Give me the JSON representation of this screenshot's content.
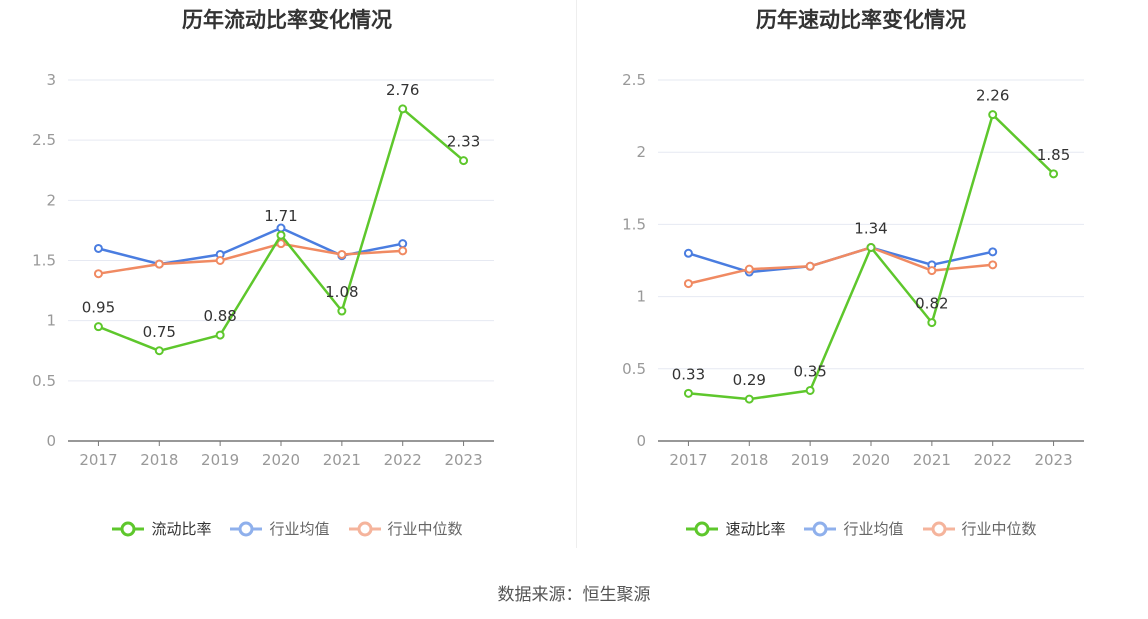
{
  "chart_data": [
    {
      "type": "line",
      "title": "历年流动比率变化情况",
      "categories": [
        "2017",
        "2018",
        "2019",
        "2020",
        "2021",
        "2022",
        "2023"
      ],
      "ylim": [
        0,
        3
      ],
      "yticks": [
        "0",
        "0.5",
        "1",
        "1.5",
        "2",
        "2.5",
        "3"
      ],
      "grid": true,
      "legend_position": "bottom",
      "series": [
        {
          "name": "流动比率",
          "values": [
            0.95,
            0.75,
            0.88,
            1.71,
            1.08,
            2.76,
            2.33
          ],
          "color": "#5ec72c",
          "labels": [
            "0.95",
            "0.75",
            "0.88",
            "1.71",
            "1.08",
            "2.76",
            "2.33"
          ]
        },
        {
          "name": "行业均值",
          "values": [
            1.6,
            1.47,
            1.55,
            1.77,
            1.54,
            1.64,
            null
          ],
          "color": "#4a7de0"
        },
        {
          "name": "行业中位数",
          "values": [
            1.39,
            1.47,
            1.5,
            1.64,
            1.55,
            1.58,
            null
          ],
          "color": "#f08a62"
        }
      ]
    },
    {
      "type": "line",
      "title": "历年速动比率变化情况",
      "categories": [
        "2017",
        "2018",
        "2019",
        "2020",
        "2021",
        "2022",
        "2023"
      ],
      "ylim": [
        0,
        2.5
      ],
      "yticks": [
        "0",
        "0.5",
        "1",
        "1.5",
        "2",
        "2.5"
      ],
      "grid": true,
      "legend_position": "bottom",
      "series": [
        {
          "name": "速动比率",
          "values": [
            0.33,
            0.29,
            0.35,
            1.34,
            0.82,
            2.26,
            1.85
          ],
          "color": "#5ec72c",
          "labels": [
            "0.33",
            "0.29",
            "0.35",
            "1.34",
            "0.82",
            "2.26",
            "1.85"
          ]
        },
        {
          "name": "行业均值",
          "values": [
            1.3,
            1.17,
            1.21,
            1.34,
            1.22,
            1.31,
            null
          ],
          "color": "#4a7de0"
        },
        {
          "name": "行业中位数",
          "values": [
            1.09,
            1.19,
            1.21,
            1.34,
            1.18,
            1.22,
            null
          ],
          "color": "#f08a62"
        }
      ]
    }
  ],
  "charts": [
    {
      "title": "历年流动比率变化情况",
      "legend": [
        {
          "label": "流动比率",
          "color": "#5ec72c"
        },
        {
          "label": "行业均值",
          "color": "#8fb0ec"
        },
        {
          "label": "行业中位数",
          "color": "#f5b49c"
        }
      ]
    },
    {
      "title": "历年速动比率变化情况",
      "legend": [
        {
          "label": "速动比率",
          "color": "#5ec72c"
        },
        {
          "label": "行业均值",
          "color": "#8fb0ec"
        },
        {
          "label": "行业中位数",
          "color": "#f5b49c"
        }
      ]
    }
  ],
  "source": "数据来源：恒生聚源"
}
